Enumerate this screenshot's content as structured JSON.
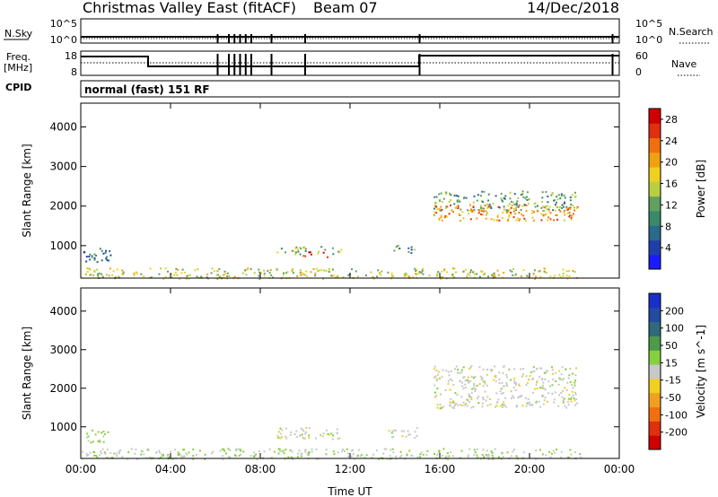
{
  "header": {
    "station": "Christmas Valley East (fitACF)",
    "beam": "Beam 07",
    "date": "14/Dec/2018"
  },
  "top_panels": {
    "nsky_label": "N.Sky",
    "nsearch_label": "N.Search",
    "noise_ticks": [
      "10^5",
      "10^0"
    ],
    "freq_label_1": "Freq.",
    "freq_label_2": "[MHz]",
    "freq_ticks": [
      "18",
      "8"
    ],
    "nave_label": "Nave",
    "nave_ticks": [
      "60",
      "0"
    ],
    "cpid_label": "CPID",
    "cpid_text": "normal (fast) 151 RF"
  },
  "colors": {
    "power_scale": [
      "#1a1aff",
      "#1f3fa8",
      "#2a6a8a",
      "#3a8a6a",
      "#60a060",
      "#b8d040",
      "#f0d020",
      "#f0a010",
      "#f07010",
      "#e03010",
      "#d00000"
    ],
    "velocity_scale": [
      "#1a2ecc",
      "#234ba0",
      "#2f6a7a",
      "#4c9a4a",
      "#86d040",
      "#c8c8c8",
      "#f0d020",
      "#f0a020",
      "#f07010",
      "#e03010",
      "#d00000"
    ]
  },
  "chart_data": [
    {
      "type": "heatmap",
      "title": "Power",
      "xlabel": "",
      "ylabel": "Slant Range [km]",
      "colorbar_label": "Power [dB]",
      "colorbar_ticks": [
        "4",
        "8",
        "12",
        "16",
        "20",
        "24",
        "28"
      ],
      "colorbar_range": [
        0,
        30
      ],
      "x_ticks": [
        "00:00",
        "04:00",
        "08:00",
        "12:00",
        "16:00",
        "20:00",
        "00:00"
      ],
      "x_range_hours": [
        0,
        24
      ],
      "y_ticks": [
        "1000",
        "2000",
        "3000",
        "4000"
      ],
      "y_range": [
        180,
        4600
      ],
      "regions": [
        {
          "t": [
            0.1,
            1.3
          ],
          "r": [
            600,
            950
          ],
          "value": 7
        },
        {
          "t": [
            0.0,
            22.3
          ],
          "r": [
            180,
            450
          ],
          "value": 16
        },
        {
          "t": [
            8.6,
            11.6
          ],
          "r": [
            800,
            1000
          ],
          "value": 14
        },
        {
          "t": [
            9.8,
            11.0
          ],
          "r": [
            720,
            860
          ],
          "value": 27
        },
        {
          "t": [
            13.7,
            14.9
          ],
          "r": [
            830,
            1020
          ],
          "value": 10
        },
        {
          "t": [
            15.7,
            22.1
          ],
          "r": [
            1900,
            2400
          ],
          "value": 11
        },
        {
          "t": [
            15.7,
            22.1
          ],
          "r": [
            1650,
            2050
          ],
          "value": 21
        }
      ]
    },
    {
      "type": "heatmap",
      "title": "Velocity",
      "xlabel": "Time UT",
      "ylabel": "Slant Range [km]",
      "colorbar_label": "Velocity [m s^-1]",
      "colorbar_ticks": [
        "200",
        "100",
        "50",
        "15",
        "-15",
        "-50",
        "-100",
        "-200"
      ],
      "colorbar_range": [
        -250,
        250
      ],
      "x_ticks": [
        "00:00",
        "04:00",
        "08:00",
        "12:00",
        "16:00",
        "20:00",
        "00:00"
      ],
      "x_range_hours": [
        0,
        24
      ],
      "y_ticks": [
        "1000",
        "2000",
        "3000",
        "4000"
      ],
      "y_range": [
        180,
        4600
      ],
      "regions": [
        {
          "t": [
            0.1,
            1.2
          ],
          "r": [
            600,
            950
          ],
          "value": 40
        },
        {
          "t": [
            0.0,
            22.3
          ],
          "r": [
            180,
            450
          ],
          "value": 20
        },
        {
          "t": [
            8.6,
            11.6
          ],
          "r": [
            700,
            1000
          ],
          "value": 0
        },
        {
          "t": [
            13.7,
            15.0
          ],
          "r": [
            700,
            1000
          ],
          "value": 0
        },
        {
          "t": [
            15.7,
            22.1
          ],
          "r": [
            1500,
            2600
          ],
          "value": 0
        }
      ]
    }
  ]
}
